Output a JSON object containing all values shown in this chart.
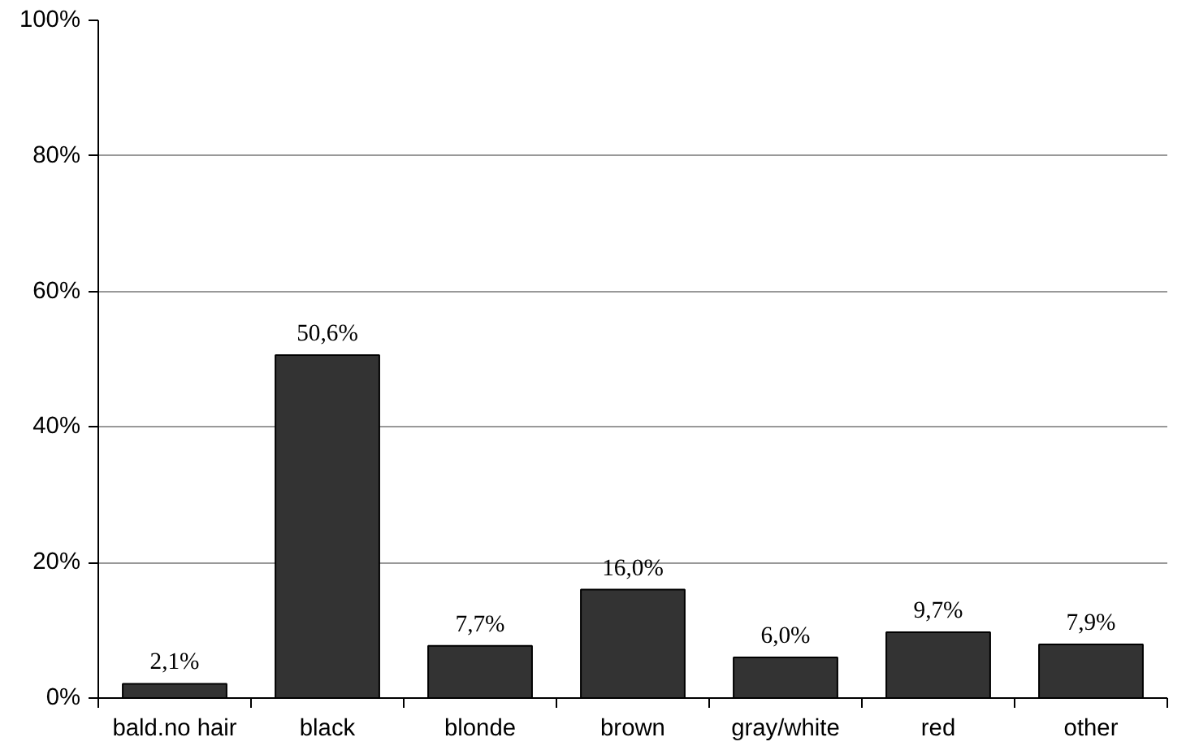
{
  "chart_data": {
    "type": "bar",
    "categories": [
      "bald.no hair",
      "black",
      "blonde",
      "brown",
      "gray/white",
      "red",
      "other"
    ],
    "values": [
      2.1,
      50.6,
      7.7,
      16.0,
      6.0,
      9.7,
      7.9
    ],
    "value_labels": [
      "2,1%",
      "50,6%",
      "7,7%",
      "16,0%",
      "6,0%",
      "9,7%",
      "7,9%"
    ],
    "color": "#333333",
    "ylim": [
      0,
      100
    ],
    "yticks": [
      {
        "value": 0,
        "label": "0%"
      },
      {
        "value": 20,
        "label": "20%"
      },
      {
        "value": 40,
        "label": "40%"
      },
      {
        "value": 60,
        "label": "60%"
      },
      {
        "value": 80,
        "label": "80%"
      },
      {
        "value": 100,
        "label": "100%"
      }
    ],
    "grid": "y"
  }
}
